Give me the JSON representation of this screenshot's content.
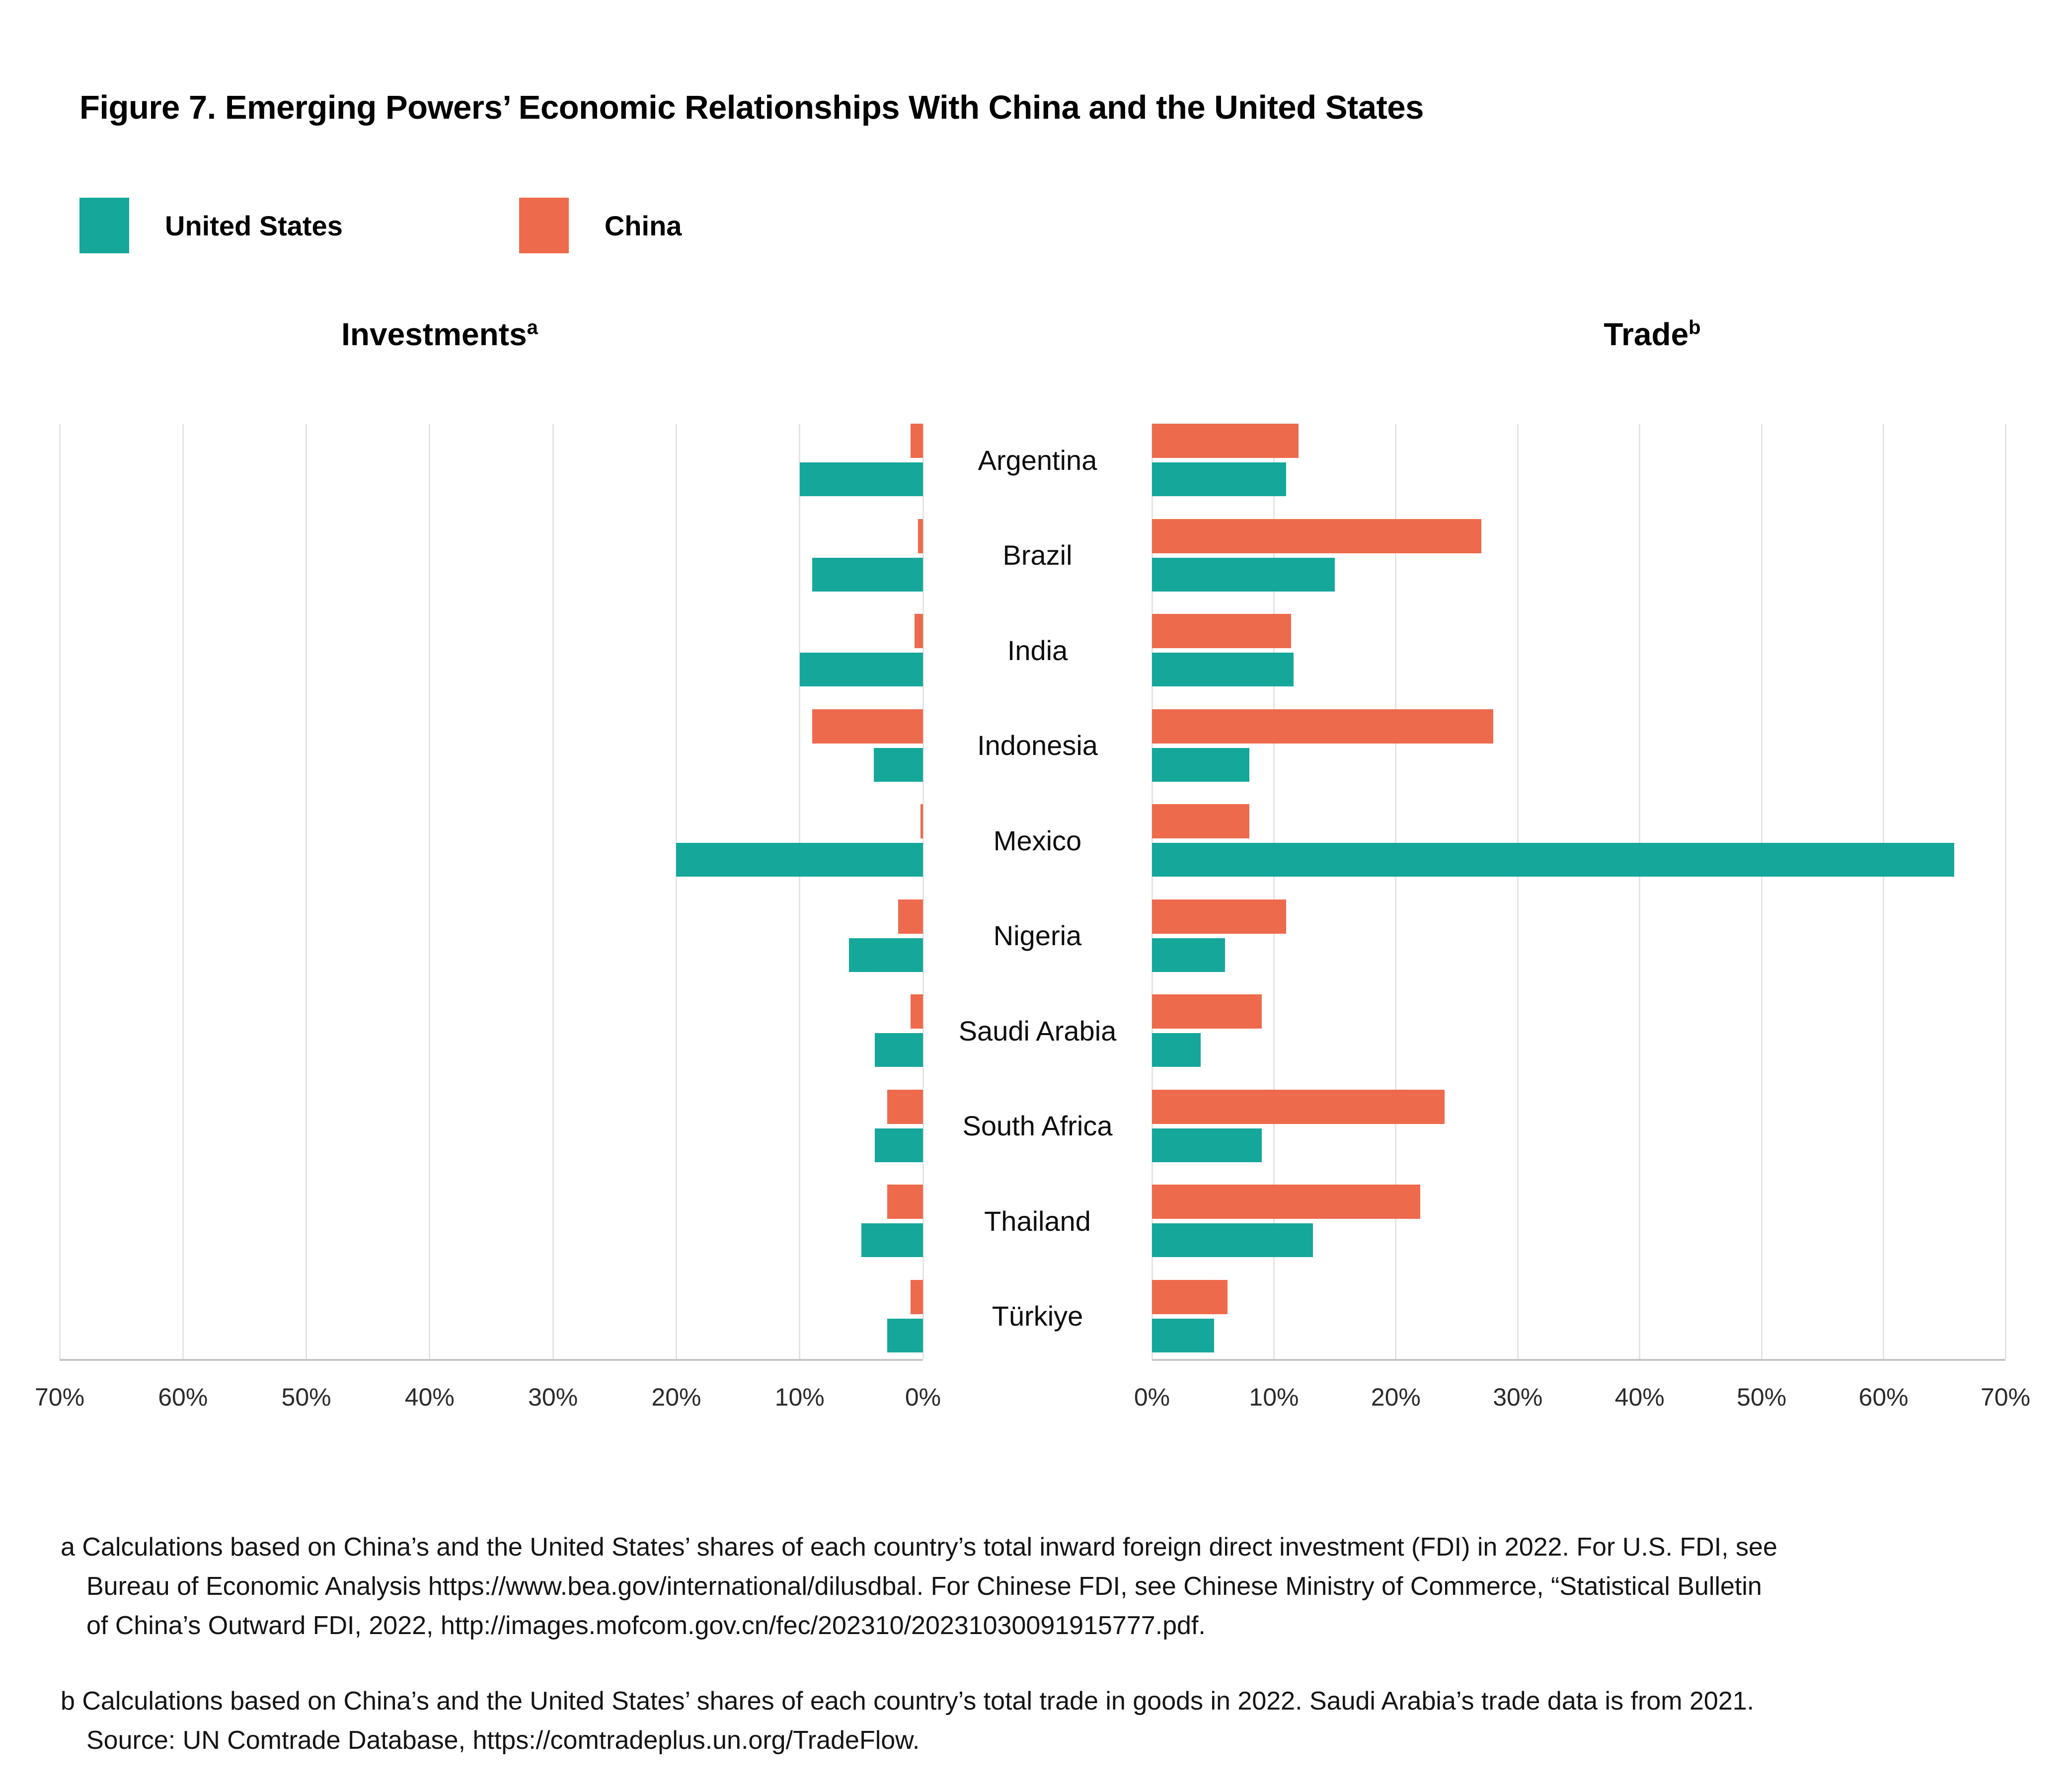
{
  "title": "Figure 7. Emerging Powers’ Economic Relationships With China and the United States",
  "legend": {
    "items": [
      {
        "label": "United States",
        "color": "#16A79B"
      },
      {
        "label": "China",
        "color": "#EE6A4C"
      }
    ]
  },
  "colors": {
    "united_states": "#16A79B",
    "china": "#EE6A4C",
    "gridline": "#e4e4e4",
    "axis_line": "#c6c6c6"
  },
  "panels": {
    "investments": {
      "title": "Investments",
      "superscript": "a"
    },
    "trade": {
      "title": "Trade",
      "superscript": "b"
    }
  },
  "chart_data": {
    "type": "bar",
    "orientation": "horizontal",
    "grid": true,
    "legend_position": "top-left",
    "categories": [
      "Argentina",
      "Brazil",
      "India",
      "Indonesia",
      "Mexico",
      "Nigeria",
      "Saudi Arabia",
      "South Africa",
      "Thailand",
      "Türkiye"
    ],
    "panels": [
      {
        "key": "investments",
        "title": "Investments",
        "superscript": "a",
        "direction": "right-to-left",
        "xlim": [
          0,
          70
        ],
        "axis_ticks": [
          "70%",
          "60%",
          "50%",
          "40%",
          "30%",
          "20%",
          "10%",
          "0%"
        ],
        "series": [
          {
            "name": "China",
            "values": [
              1.0,
              0.4,
              0.7,
              9.0,
              0.2,
              2.0,
              1.0,
              2.9,
              2.9,
              1.0
            ]
          },
          {
            "name": "United States",
            "values": [
              10.0,
              9.0,
              10.0,
              4.0,
              20.0,
              6.0,
              3.9,
              3.9,
              5.0,
              2.9
            ]
          }
        ]
      },
      {
        "key": "trade",
        "title": "Trade",
        "superscript": "b",
        "direction": "left-to-right",
        "xlim": [
          0,
          70
        ],
        "axis_ticks": [
          "0%",
          "10%",
          "20%",
          "30%",
          "40%",
          "50%",
          "60%",
          "70%"
        ],
        "series": [
          {
            "name": "China",
            "values": [
              12.0,
              27.0,
              11.4,
              28.0,
              8.0,
              11.0,
              9.0,
              24.0,
              22.0,
              6.2
            ]
          },
          {
            "name": "United States",
            "values": [
              11.0,
              15.0,
              11.6,
              8.0,
              65.8,
              6.0,
              4.0,
              9.0,
              13.2,
              5.1
            ]
          }
        ]
      }
    ]
  },
  "footnotes": {
    "a": "a Calculations based on China’s and the United States’ shares of each country’s total inward foreign direct investment (FDI) in 2022. For U.S. FDI, see\nBureau of Economic Analysis https://www.bea.gov/international/dilusdbal. For Chinese FDI, see Chinese Ministry of Commerce, “Statistical Bulletin\nof China’s Outward FDI, 2022, http://images.mofcom.gov.cn/fec/202310/20231030091915777.pdf.",
    "b": "b Calculations based on China’s and the United States’ shares of each country’s total trade in goods in 2022. Saudi Arabia’s trade data is from 2021.\nSource: UN Comtrade Database, https://comtradeplus.un.org/TradeFlow."
  }
}
